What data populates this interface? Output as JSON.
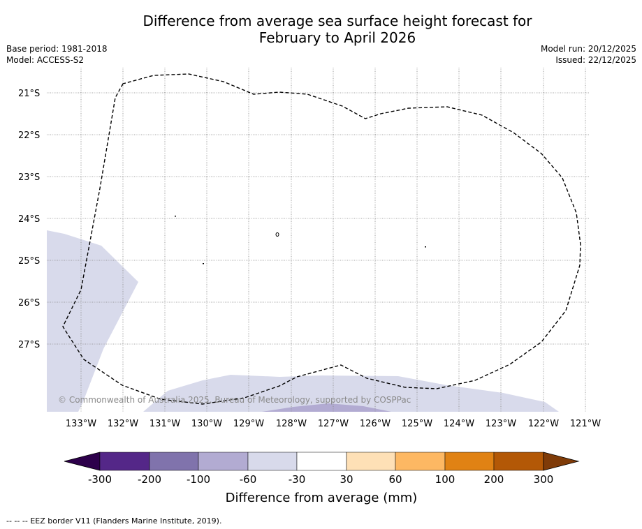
{
  "title": {
    "line1": "Difference from average sea surface height forecast for",
    "line2": "February to April 2026"
  },
  "meta": {
    "base_period": "Base period: 1981-2018",
    "model": "Model: ACCESS-S2",
    "model_run": "Model run: 20/12/2025",
    "issued": "Issued: 22/12/2025"
  },
  "map": {
    "copyright": "© Commonwealth of Australia 2025, Bureau of Meteorology, supported by COSPPac",
    "lat_labels": [
      "21°S",
      "22°S",
      "23°S",
      "24°S",
      "25°S",
      "26°S",
      "27°S"
    ],
    "lon_labels": [
      "133°W",
      "132°W",
      "131°W",
      "130°W",
      "129°W",
      "128°W",
      "127°W",
      "126°W",
      "125°W",
      "124°W",
      "123°W",
      "122°W",
      "121°W"
    ],
    "eez_border": "EEZ border (dashed)"
  },
  "colorbar": {
    "ticks": [
      "-300",
      "-200",
      "-100",
      "-60",
      "-30",
      "30",
      "60",
      "100",
      "200",
      "300"
    ],
    "colors": [
      "#542788",
      "#8073ac",
      "#b2abd2",
      "#d8daeb",
      "#ffffff",
      "#fee0b6",
      "#fdb863",
      "#e08214",
      "#b35806"
    ],
    "extend_low_color": "#2d004b",
    "extend_high_color": "#7f3b08",
    "label": "Difference from average (mm)"
  },
  "footer": {
    "legend_symbol": "--  --  --",
    "legend_text": "EEZ border V11 (Flanders Marine Institute, 2019)."
  }
}
